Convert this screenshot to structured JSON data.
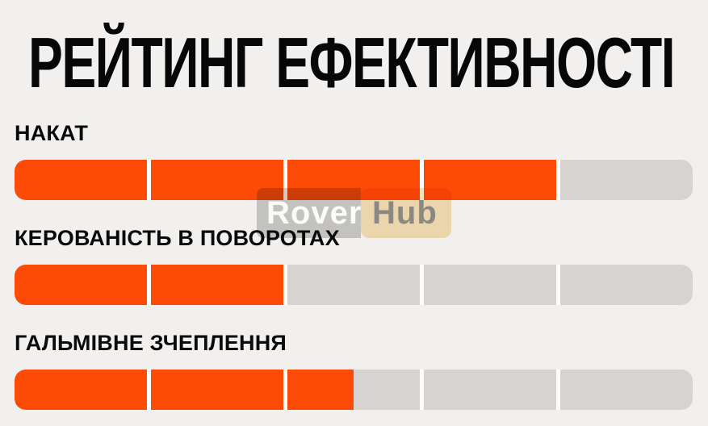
{
  "page": {
    "background": "#f1f0ee"
  },
  "title": "РЕЙТИНГ ЕФЕКТИВНОСТІ",
  "watermark": {
    "part1": "Rover",
    "part2": "Hub"
  },
  "colors": {
    "filled": "#fb4b06",
    "unfilled": "#d6d3d1",
    "gap": "#fdfdfd",
    "text": "#0b0b0b",
    "watermark_left_bg": "#cfcecd",
    "watermark_right_bg": "#f8e3ba"
  },
  "ratings": [
    {
      "label": "НАКАТ",
      "value": 4,
      "max": 5
    },
    {
      "label": "КЕРОВАНІСТЬ В ПОВОРОТАХ",
      "value": 2,
      "max": 5
    },
    {
      "label": "ГАЛЬМІВНЕ ЗЧЕПЛЕННЯ",
      "value": 2.5,
      "max": 5
    }
  ],
  "chart_data": {
    "type": "bar",
    "title": "РЕЙТИНГ ЕФЕКТИВНОСТІ",
    "categories": [
      "НАКАТ",
      "КЕРОВАНІСТЬ В ПОВОРОТАХ",
      "ГАЛЬМІВНЕ ЗЧЕПЛЕННЯ"
    ],
    "values": [
      4,
      2,
      2.5
    ],
    "value_range": [
      0,
      5
    ],
    "segments_per_bar": 5,
    "orientation": "horizontal",
    "bar_fill_color": "#fb4b06",
    "bar_empty_color": "#d6d3d1",
    "legend": "none",
    "grid": "off"
  }
}
